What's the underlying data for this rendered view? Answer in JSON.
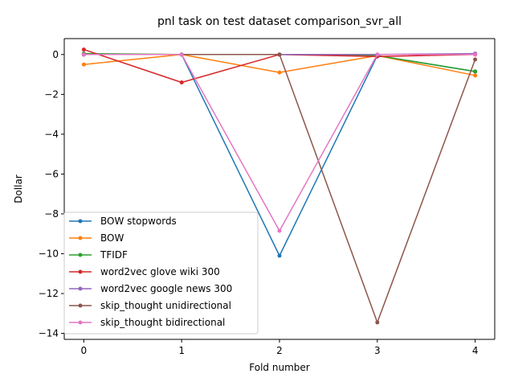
{
  "chart_data": {
    "type": "line",
    "title": "pnl task on test dataset comparison_svr_all",
    "xlabel": "Fold number",
    "ylabel": "Dollar",
    "x": [
      0,
      1,
      2,
      3,
      4
    ],
    "xlim": [
      -0.2,
      4.2
    ],
    "ylim": [
      -14.3,
      0.8
    ],
    "xticks": [
      "0",
      "1",
      "2",
      "3",
      "4"
    ],
    "yticks": [
      0,
      -2,
      -4,
      -6,
      -8,
      -10,
      -12,
      -14
    ],
    "ytick_labels": [
      "0",
      "−2",
      "−4",
      "−6",
      "−8",
      "−10",
      "−12",
      "−14"
    ],
    "grid": false,
    "legend_position": "lower-left",
    "series": [
      {
        "name": "BOW stopwords",
        "color": "#1f77b4",
        "values": [
          0.0,
          0.0,
          -10.1,
          -0.05,
          -0.85
        ]
      },
      {
        "name": "BOW",
        "color": "#ff7f0e",
        "values": [
          -0.5,
          0.0,
          -0.9,
          -0.05,
          -1.05
        ]
      },
      {
        "name": "TFIDF",
        "color": "#2ca02c",
        "values": [
          0.05,
          0.0,
          0.0,
          -0.05,
          -0.85
        ]
      },
      {
        "name": "word2vec glove wiki 300",
        "color": "#d62728",
        "values": [
          0.25,
          -1.4,
          0.0,
          -0.1,
          0.0
        ]
      },
      {
        "name": "word2vec google news 300",
        "color": "#9467bd",
        "values": [
          0.0,
          0.0,
          0.0,
          0.0,
          0.05
        ]
      },
      {
        "name": "skip_thought unidirectional",
        "color": "#8c564b",
        "values": [
          0.0,
          0.0,
          0.0,
          -13.45,
          -0.25
        ]
      },
      {
        "name": "skip_thought bidirectional",
        "color": "#e377c2",
        "values": [
          0.0,
          0.0,
          -8.85,
          0.0,
          0.0
        ]
      }
    ]
  }
}
